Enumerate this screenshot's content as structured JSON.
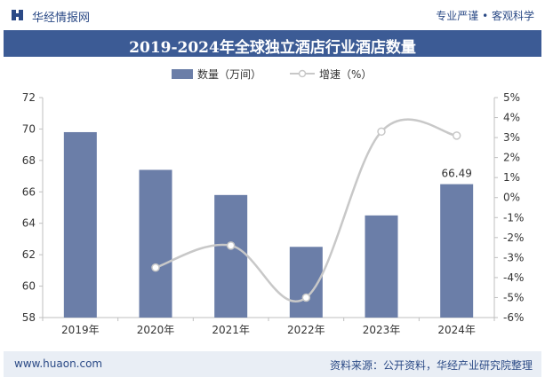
{
  "header": {
    "brand": "华经情报网",
    "slogan": "专业严谨 • 客观科学"
  },
  "footer": {
    "site": "www.huaon.com",
    "source": "资料来源：公开资料，华经产业研究院整理"
  },
  "colors": {
    "bar": "#6b7ea8",
    "line": "#c8c8c8",
    "title_bg": "#3c5b95",
    "brand": "#2b4a86"
  },
  "chart_data": {
    "type": "bar",
    "title": "2019-2024年全球独立酒店行业酒店数量",
    "categories": [
      "2019年",
      "2020年",
      "2021年",
      "2022年",
      "2023年",
      "2024年"
    ],
    "series": [
      {
        "name": "数量（万间）",
        "type": "bar",
        "axis": "left",
        "values": [
          69.8,
          67.4,
          65.8,
          62.5,
          64.5,
          66.49
        ]
      },
      {
        "name": "增速（%）",
        "type": "line",
        "axis": "right",
        "values": [
          null,
          -3.5,
          -2.4,
          -5.0,
          3.3,
          3.1
        ]
      }
    ],
    "data_labels": [
      {
        "category": "2024年",
        "text": "66.49"
      }
    ],
    "y_left": {
      "min": 58,
      "max": 72,
      "ticks": [
        "58",
        "60",
        "62",
        "64",
        "66",
        "68",
        "70",
        "72"
      ]
    },
    "y_right": {
      "min": -6,
      "max": 5,
      "ticks": [
        "-6%",
        "-5%",
        "-4%",
        "-3%",
        "-2%",
        "-1%",
        "0%",
        "1%",
        "2%",
        "3%",
        "4%",
        "5%"
      ]
    },
    "legend_position": "top-center",
    "grid": false
  }
}
